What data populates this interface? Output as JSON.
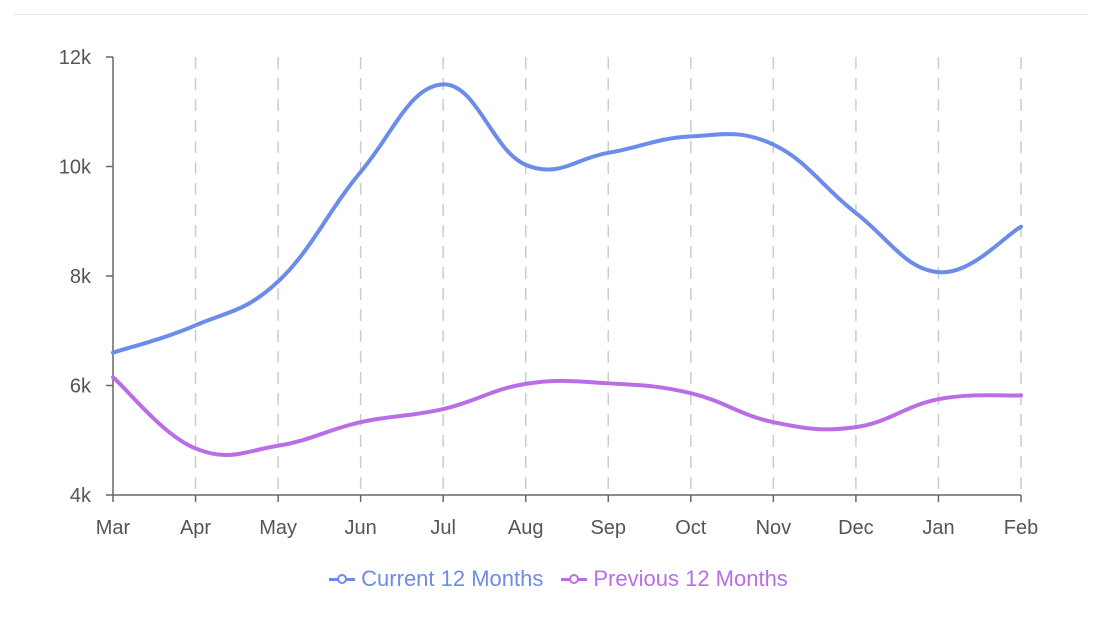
{
  "chart_data": {
    "type": "line",
    "categories": [
      "Mar",
      "Apr",
      "May",
      "Jun",
      "Jul",
      "Aug",
      "Sep",
      "Oct",
      "Nov",
      "Dec",
      "Jan",
      "Feb"
    ],
    "y_ticks": [
      "4k",
      "6k",
      "8k",
      "10k",
      "12k"
    ],
    "ylim": [
      4000,
      12000
    ],
    "grid": "vertical dashed",
    "legend_position": "bottom",
    "series": [
      {
        "name": "Current 12 Months",
        "color": "#6c8cea",
        "values": [
          6600,
          7100,
          7900,
          9900,
          11500,
          10030,
          10250,
          10550,
          10400,
          9150,
          8070,
          8900
        ]
      },
      {
        "name": "Previous 12 Months",
        "color": "#b96ee6",
        "values": [
          6150,
          4850,
          4900,
          5330,
          5570,
          6030,
          6040,
          5860,
          5330,
          5240,
          5750,
          5820
        ]
      }
    ]
  }
}
